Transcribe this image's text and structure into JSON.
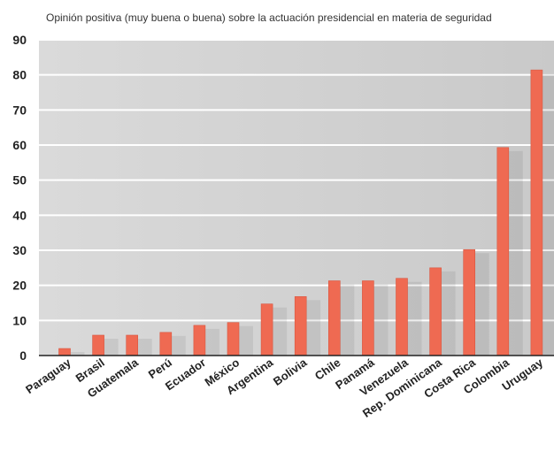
{
  "chart_data": {
    "type": "bar",
    "title": "Opinión positiva (muy buena o buena) sobre la actuación presidencial en materia de seguridad",
    "xlabel": "",
    "ylabel": "",
    "ylim": [
      0,
      90
    ],
    "yticks": [
      0,
      10,
      20,
      30,
      40,
      50,
      60,
      70,
      80,
      90
    ],
    "grid": true,
    "categories": [
      "Paraguay",
      "Brasil",
      "Guatemala",
      "Perú",
      "Ecuador",
      "México",
      "Argentina",
      "Bolivia",
      "Chile",
      "Panamá",
      "Venezuela",
      "Rep. Dominicana",
      "Costa Rica",
      "Colombia",
      "Uruguay"
    ],
    "values": [
      2,
      5.8,
      5.8,
      6.6,
      8.6,
      9.4,
      14.7,
      16.8,
      21.3,
      21.3,
      22,
      25,
      30.2,
      59.3,
      81.4
    ],
    "colors": {
      "bar": "#ef6a52",
      "plot_background": "#d3d3d3",
      "gridline": "#ffffff",
      "axis": "#222222"
    }
  }
}
